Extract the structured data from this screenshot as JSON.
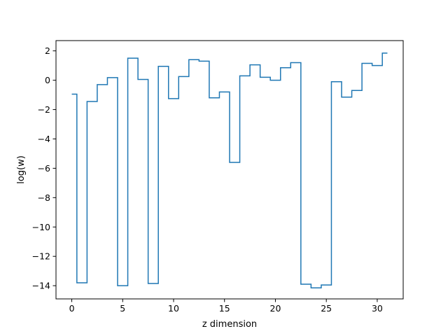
{
  "chart_data": {
    "type": "line",
    "drawstyle": "steps-mid",
    "xlabel": "z dimension",
    "ylabel": "log(w)",
    "xlim": [
      -1.55,
      32.55
    ],
    "ylim": [
      -14.9,
      2.7
    ],
    "xticks": [
      0,
      5,
      10,
      15,
      20,
      25,
      30
    ],
    "yticks": [
      2,
      0,
      -2,
      -4,
      -6,
      -8,
      -10,
      -12,
      -14
    ],
    "ytick_labels": [
      "2",
      "0",
      "−2",
      "−4",
      "−6",
      "−8",
      "−10",
      "−12",
      "−14"
    ],
    "grid": false,
    "line_color": "#1f77b4",
    "x": [
      0,
      1,
      2,
      3,
      4,
      5,
      6,
      7,
      8,
      9,
      10,
      11,
      12,
      13,
      14,
      15,
      16,
      17,
      18,
      19,
      20,
      21,
      22,
      23,
      24,
      25,
      26,
      27,
      28,
      29,
      30,
      31
    ],
    "y": [
      -0.95,
      -13.8,
      -1.45,
      -0.3,
      0.18,
      -14.0,
      1.5,
      0.05,
      -13.85,
      0.95,
      -1.25,
      0.25,
      1.4,
      1.3,
      -1.2,
      -0.8,
      -5.6,
      0.3,
      1.05,
      0.2,
      0.0,
      0.85,
      1.2,
      -13.9,
      -14.15,
      -13.95,
      -0.1,
      -1.15,
      -0.7,
      1.15,
      1.0,
      1.85
    ]
  }
}
